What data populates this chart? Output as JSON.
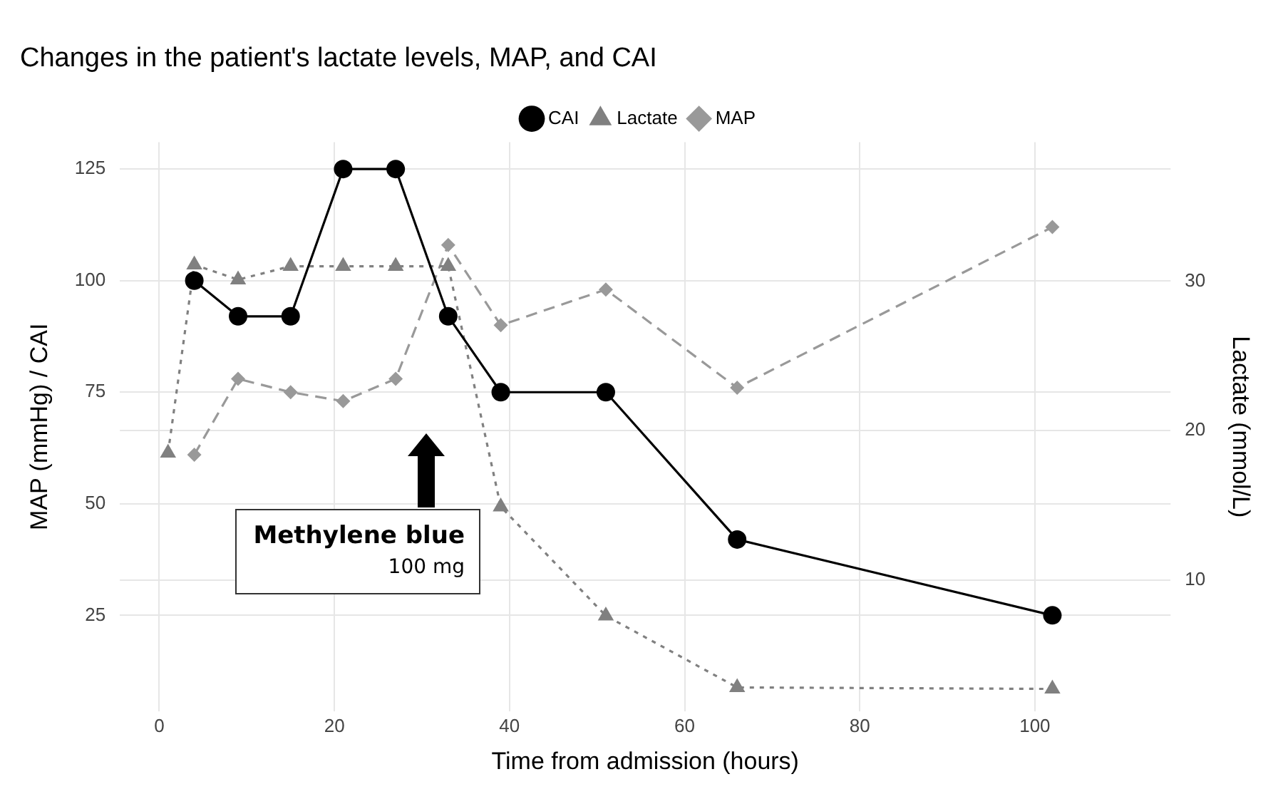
{
  "chart_data": {
    "type": "line",
    "title": "Changes in the patient's lactate levels, MAP, and CAI",
    "xlabel": "Time from admission (hours)",
    "ylabel": "MAP (mmHg) / CAI",
    "y2label": "Lactate (mmol/L)",
    "xlim": [
      -4.5,
      115.5
    ],
    "xticks": [
      0,
      20,
      40,
      60,
      80,
      100
    ],
    "ylim": [
      3.5,
      131
    ],
    "yticks": [
      25,
      50,
      75,
      100,
      125
    ],
    "y2lim": [
      1.2,
      39.3
    ],
    "y2ticks": [
      10,
      20,
      30
    ],
    "grid": true,
    "legend": "top",
    "series": [
      {
        "name": "CAI",
        "color": "#000000",
        "marker": "circle",
        "line_style": "solid",
        "x": [
          4,
          9,
          15,
          21,
          27,
          33,
          39,
          51,
          66,
          102
        ],
        "values": [
          100,
          92,
          92,
          125,
          125,
          92,
          75,
          75,
          42,
          25
        ]
      },
      {
        "name": "Lactate",
        "color": "#808080",
        "marker": "triangle",
        "line_style": "dotted",
        "axis": "y2",
        "x": [
          1,
          4,
          9,
          15,
          21,
          27,
          33,
          39,
          51,
          66,
          102
        ],
        "values": [
          18.5,
          31.1,
          30.1,
          31,
          31,
          31,
          31,
          14.9,
          7.6,
          2.8,
          2.7
        ]
      },
      {
        "name": "MAP",
        "color": "#999999",
        "marker": "diamond",
        "line_style": "dashed",
        "x": [
          4,
          9,
          15,
          21,
          27,
          33,
          39,
          51,
          66,
          102
        ],
        "values": [
          61,
          78,
          75,
          73,
          78,
          108,
          90,
          98,
          76,
          112
        ]
      }
    ],
    "annotations": [
      "Methylene blue",
      "100 mg"
    ]
  }
}
